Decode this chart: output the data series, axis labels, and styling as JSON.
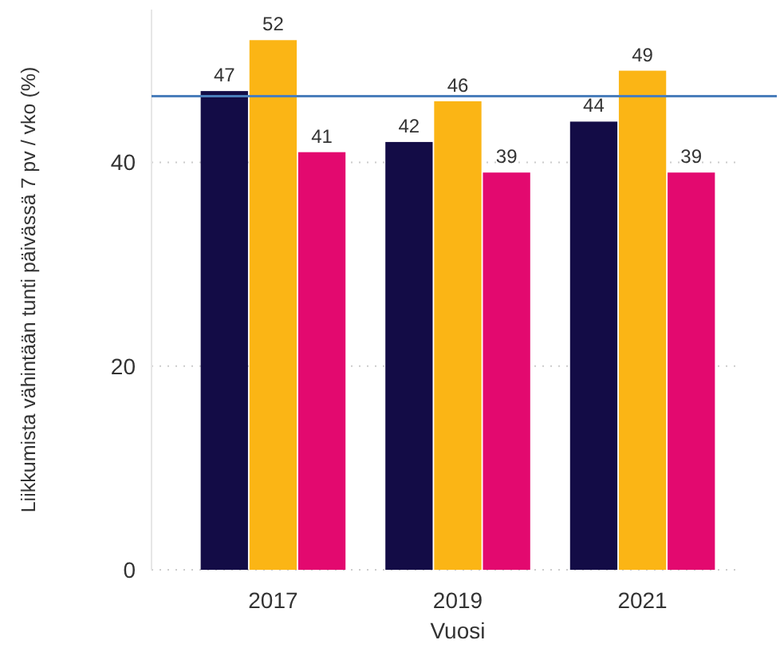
{
  "chart_data": {
    "type": "bar",
    "xlabel": "Vuosi",
    "ylabel": "Liikkumista vähintään tunti päivässä 7 pv / vko (%)",
    "categories": [
      "2017",
      "2019",
      "2021"
    ],
    "series": [
      {
        "color": "#130c46",
        "values": [
          47,
          42,
          44
        ]
      },
      {
        "color": "#fbb515",
        "values": [
          52,
          46,
          49
        ]
      },
      {
        "color": "#e3096f",
        "values": [
          41,
          39,
          39
        ]
      }
    ],
    "ylim": [
      0,
      55
    ],
    "yticks": [
      0,
      20,
      40
    ],
    "grid": "y",
    "data_labels": true,
    "ref_lines": [
      {
        "axis": "y",
        "value": 46.5,
        "color": "#4a7ebb"
      }
    ]
  }
}
